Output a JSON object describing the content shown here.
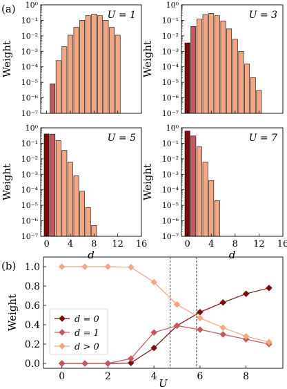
{
  "panel_labels": {
    "a": "(a)",
    "b": "(b)"
  },
  "colors": {
    "d0": "#7a0c0c",
    "d1": "#c5575f",
    "dgt0": "#f4a582",
    "edge": "#000000"
  },
  "chart_data": [
    {
      "type": "bar",
      "panel": "(a)",
      "annotation": "U = 1",
      "xlabel": "",
      "ylabel": "Weight",
      "yscale": "log",
      "ylim": [
        1e-07,
        1
      ],
      "xlim": [
        -1,
        16
      ],
      "yticks": [
        "10⁻⁷",
        "10⁻⁶",
        "10⁻⁵",
        "10⁻⁴",
        "10⁻³",
        "10⁻²",
        "10⁻¹",
        "10⁰"
      ],
      "xticks": [],
      "x": [
        1,
        2,
        3,
        4,
        5,
        6,
        7,
        8,
        9,
        10,
        11,
        12
      ],
      "values": [
        8e-06,
        0.00025,
        0.002,
        0.011,
        0.035,
        0.1,
        0.2,
        0.25,
        0.2,
        0.1,
        0.035,
        0.011
      ]
    },
    {
      "type": "bar",
      "panel": "(a)",
      "annotation": "U = 3",
      "xlabel": "",
      "ylabel": "Weight",
      "yscale": "log",
      "ylim": [
        1e-07,
        1
      ],
      "xlim": [
        -1,
        16
      ],
      "yticks": [
        "10⁻⁷",
        "10⁻⁶",
        "10⁻⁵",
        "10⁻⁴",
        "10⁻³",
        "10⁻²",
        "10⁻¹",
        "10⁰"
      ],
      "xticks": [],
      "x": [
        0,
        1,
        2,
        3,
        4,
        5,
        6,
        7,
        8,
        9,
        10,
        11,
        12
      ],
      "values": [
        0.0035,
        0.04,
        0.12,
        0.23,
        0.28,
        0.2,
        0.09,
        0.028,
        0.006,
        0.001,
        0.00015,
        2e-05,
        3e-06
      ]
    },
    {
      "type": "bar",
      "panel": "(a)",
      "annotation": "U = 5",
      "xlabel": "d",
      "ylabel": "Weight",
      "yscale": "log",
      "ylim": [
        1e-07,
        1
      ],
      "xlim": [
        -1,
        16
      ],
      "yticks": [
        "10⁻⁷",
        "10⁻⁶",
        "10⁻⁵",
        "10⁻⁴",
        "10⁻³",
        "10⁻²",
        "10⁻¹",
        "10⁰"
      ],
      "xticks": [
        "0",
        "4",
        "8",
        "12",
        "16"
      ],
      "x": [
        0,
        1,
        2,
        3,
        4,
        5,
        6,
        7,
        8
      ],
      "values": [
        0.4,
        0.39,
        0.15,
        0.035,
        0.006,
        0.0008,
        8e-05,
        7e-06,
        5e-07
      ]
    },
    {
      "type": "bar",
      "panel": "(a)",
      "annotation": "U = 7",
      "xlabel": "d",
      "ylabel": "Weight",
      "yscale": "log",
      "ylim": [
        1e-07,
        1
      ],
      "xlim": [
        -1,
        16
      ],
      "yticks": [
        "10⁻⁷",
        "10⁻⁶",
        "10⁻⁵",
        "10⁻⁴",
        "10⁻³",
        "10⁻²",
        "10⁻¹",
        "10⁰"
      ],
      "xticks": [
        "0",
        "4",
        "8",
        "12",
        "16"
      ],
      "x": [
        0,
        1,
        2,
        3,
        4,
        5
      ],
      "values": [
        0.62,
        0.3,
        0.06,
        0.006,
        0.0004,
        2e-05
      ]
    },
    {
      "type": "line",
      "panel": "(b)",
      "xlabel": "U",
      "ylabel": "Weight",
      "xlim": [
        -0.8,
        9.6
      ],
      "ylim": [
        -0.05,
        1.1
      ],
      "xticks": [
        "0",
        "2",
        "4",
        "6",
        "8"
      ],
      "yticks": [
        "0.0",
        "0.2",
        "0.4",
        "0.6",
        "0.8",
        "1.0"
      ],
      "grid": false,
      "legend_position": "center-left",
      "vlines": [
        4.7,
        5.85
      ],
      "x": [
        0,
        1,
        2,
        3,
        4,
        5,
        6,
        7,
        8,
        9
      ],
      "series": [
        {
          "name": "d = 0",
          "color": "#7a0c0c",
          "values": [
            0.0,
            0.0,
            0.0,
            0.005,
            0.16,
            0.39,
            0.53,
            0.63,
            0.72,
            0.78
          ]
        },
        {
          "name": "d = 1",
          "color": "#c5575f",
          "values": [
            0.0,
            0.0,
            0.0,
            0.05,
            0.32,
            0.39,
            0.35,
            0.3,
            0.25,
            0.2
          ]
        },
        {
          "name": "d > 0",
          "color": "#f4a582",
          "values": [
            1.0,
            1.0,
            1.0,
            0.995,
            0.84,
            0.61,
            0.47,
            0.37,
            0.28,
            0.22
          ]
        }
      ]
    }
  ]
}
